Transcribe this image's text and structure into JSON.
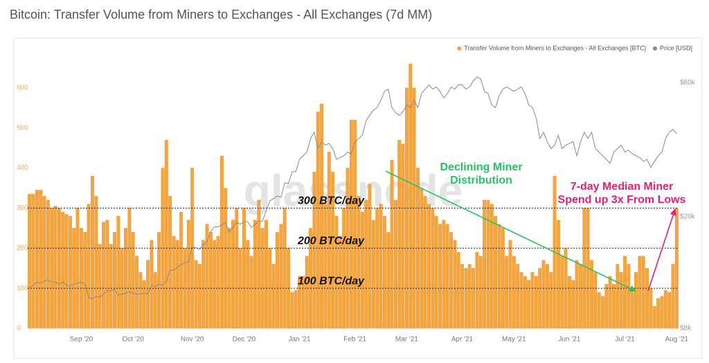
{
  "chart_data": {
    "type": "bar",
    "title": "Bitcoin: Transfer Volume from Miners to Exchanges - All Exchanges (7d MM)",
    "categories": [
      null,
      null,
      null,
      null,
      null,
      null,
      null,
      null,
      null,
      null,
      null,
      null,
      null,
      null,
      "Sep '20",
      null,
      null,
      null,
      null,
      null,
      null,
      null,
      null,
      null,
      null,
      null,
      null,
      null,
      "Oct '20",
      null,
      null,
      null,
      null,
      null,
      null,
      null,
      null,
      null,
      null,
      null,
      null,
      null,
      null,
      null,
      "Nov '20",
      null,
      null,
      null,
      null,
      null,
      null,
      null,
      null,
      null,
      null,
      null,
      null,
      null,
      "Dec '20",
      null,
      null,
      null,
      null,
      null,
      null,
      null,
      null,
      null,
      null,
      null,
      null,
      null,
      null,
      "Jan '21",
      null,
      null,
      null,
      null,
      null,
      null,
      null,
      null,
      null,
      null,
      null,
      null,
      null,
      null,
      "Feb '21",
      null,
      null,
      null,
      null,
      null,
      null,
      null,
      null,
      null,
      null,
      null,
      null,
      null,
      "Mar '21",
      null,
      null,
      null,
      null,
      null,
      null,
      null,
      null,
      null,
      null,
      null,
      null,
      null,
      null,
      "Apr '21",
      null,
      null,
      null,
      null,
      null,
      null,
      null,
      null,
      null,
      null,
      null,
      null,
      null,
      "May '21",
      null,
      null,
      null,
      null,
      null,
      null,
      null,
      null,
      null,
      null,
      null,
      null,
      null,
      null,
      "Jun '21",
      null,
      null,
      null,
      null,
      null,
      null,
      null,
      null,
      null,
      null,
      null,
      null,
      null,
      null,
      "Jul '21",
      null,
      null,
      null,
      null,
      null,
      null,
      null,
      null,
      null,
      null,
      null,
      null,
      null,
      "Aug '21"
    ],
    "series": [
      {
        "name": "Transfer Volume from Miners to Exchanges - All Exchanges [BTC]",
        "color": "#f5a53c",
        "values": [
          335,
          335,
          345,
          345,
          330,
          320,
          300,
          305,
          300,
          290,
          285,
          280,
          250,
          300,
          250,
          240,
          310,
          380,
          330,
          210,
          265,
          270,
          210,
          240,
          280,
          200,
          250,
          300,
          240,
          180,
          140,
          120,
          170,
          220,
          140,
          240,
          400,
          470,
          330,
          230,
          220,
          290,
          200,
          270,
          400,
          170,
          160,
          220,
          260,
          240,
          220,
          230,
          430,
          350,
          250,
          270,
          300,
          200,
          300,
          220,
          180,
          270,
          320,
          250,
          270,
          200,
          160,
          240,
          260,
          300,
          200,
          90,
          95,
          130,
          130,
          180,
          250,
          390,
          540,
          560,
          310,
          440,
          390,
          280,
          230,
          300,
          400,
          520,
          520,
          330,
          290,
          320,
          360,
          270,
          300,
          310,
          280,
          240,
          420,
          320,
          470,
          460,
          600,
          660,
          600,
          400,
          350,
          330,
          310,
          300,
          280,
          260,
          270,
          260,
          240,
          220,
          190,
          160,
          150,
          160,
          150,
          190,
          180,
          320,
          320,
          310,
          280,
          260,
          250,
          180,
          220,
          180,
          160,
          140,
          130,
          120,
          140,
          130,
          150,
          170,
          160,
          140,
          380,
          270,
          180,
          200,
          130,
          120,
          170,
          160,
          300,
          300,
          170,
          140,
          90,
          80,
          110,
          130,
          110,
          160,
          140,
          180,
          160,
          100,
          140,
          180,
          180,
          150,
          100,
          55,
          75,
          80,
          95,
          90,
          160,
          300
        ]
      },
      {
        "name": "Price [USD]",
        "color": "#8a8a8a",
        "type": "line",
        "axis": "y2",
        "values": [
          11200,
          11400,
          11700,
          11600,
          11800,
          11900,
          11700,
          11700,
          11500,
          11700,
          11400,
          11300,
          11500,
          11600,
          11700,
          11500,
          10300,
          10200,
          10400,
          10300,
          10600,
          10900,
          10900,
          11000,
          10500,
          10600,
          10700,
          10800,
          10700,
          10600,
          10600,
          10700,
          10600,
          11400,
          11300,
          11500,
          11400,
          11800,
          12900,
          12900,
          13200,
          13500,
          13700,
          13800,
          15600,
          15500,
          15300,
          15900,
          16300,
          17700,
          18400,
          18400,
          18700,
          19100,
          17600,
          18300,
          19100,
          18800,
          19200,
          19200,
          18300,
          18800,
          19200,
          19300,
          21000,
          22800,
          23200,
          23700,
          23500,
          26400,
          26300,
          28900,
          29000,
          32000,
          33000,
          34000,
          38000,
          40000,
          35000,
          37000,
          36000,
          36500,
          35000,
          32000,
          32500,
          33000,
          34000,
          33500,
          37000,
          38000,
          39000,
          44000,
          46000,
          48000,
          49000,
          52000,
          56000,
          57000,
          49000,
          47000,
          46000,
          47500,
          50000,
          49000,
          52000,
          49000,
          55000,
          57000,
          59000,
          57000,
          58000,
          56000,
          53000,
          55000,
          58000,
          57000,
          59000,
          59000,
          57000,
          58000,
          61000,
          63000,
          62000,
          56000,
          55000,
          50000,
          49000,
          54000,
          57000,
          58000,
          57000,
          56000,
          57000,
          58000,
          55000,
          50000,
          49000,
          45000,
          38000,
          40000,
          37000,
          35000,
          36000,
          39000,
          35000,
          36000,
          36500,
          37000,
          33000,
          37000,
          40000,
          38000,
          40000,
          35000,
          34000,
          33000,
          32000,
          31000,
          34000,
          35000,
          36000,
          34000,
          34500,
          33500,
          33000,
          32500,
          31500,
          32000,
          30000,
          31500,
          33000,
          34000,
          38000,
          40000,
          41000,
          39500
        ]
      }
    ],
    "ylim": [
      0,
      700
    ],
    "yticks": [
      0,
      100,
      200,
      300,
      400,
      500,
      600
    ],
    "y2lim": [
      8000,
      80000
    ],
    "y2log": true,
    "y2ticks": [
      {
        "value": 8000,
        "label": "$8k"
      },
      {
        "value": 20000,
        "label": "$20k"
      },
      {
        "value": 60000,
        "label": "$60k"
      }
    ],
    "hlines": [
      {
        "value": 100,
        "label": "100 BTC/day"
      },
      {
        "value": 200,
        "label": "200 BTC/day"
      },
      {
        "value": 300,
        "label": "300 BTC/day"
      }
    ],
    "annotations": [
      {
        "lines": [
          "Declining Miner",
          "Distribution"
        ],
        "color": "#22c55e"
      },
      {
        "lines": [
          "7-day Median Miner",
          "Spend up 3x From Lows"
        ],
        "color": "#e91e78"
      }
    ],
    "watermark": "glassnode",
    "legend": "top-right"
  }
}
